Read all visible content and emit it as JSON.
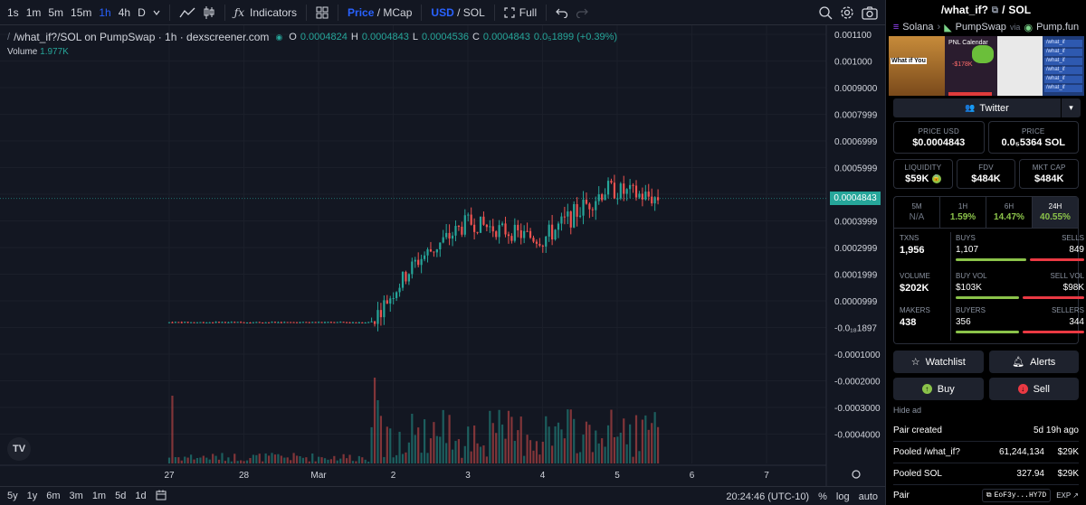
{
  "toolbar": {
    "intervals": [
      "1s",
      "1m",
      "5m",
      "15m",
      "1h",
      "4h",
      "D"
    ],
    "active_interval": "1h",
    "indicators_label": "Indicators",
    "price_label": "Price",
    "mcap_label": "MCap",
    "usd_label": "USD",
    "sol_label": "SOL",
    "full_label": "Full"
  },
  "legend": {
    "symbol": "/what_if?/SOL on PumpSwap · 1h · dexscreener.com",
    "o_label": "O",
    "o_value": "0.0004824",
    "h_label": "H",
    "h_value": "0.0004843",
    "l_label": "L",
    "l_value": "0.0004536",
    "c_label": "C",
    "c_value": "0.0004843",
    "change": "0.0₅1899 (+0.39%)",
    "volume_label": "Volume",
    "volume_value": "1.977K",
    "logo": "TV"
  },
  "price_tag": "0.0004843",
  "chart_data": {
    "type": "candlestick",
    "y_axis_labels": [
      "0.001100",
      "0.001000",
      "0.0009000",
      "0.0007999",
      "0.0006999",
      "0.0005999",
      "0.0004999",
      "0.0003999",
      "0.0002999",
      "0.0001999",
      "0.0000999",
      "-0.0₁₈1897",
      "-0.0001000",
      "-0.0002000",
      "-0.0003000",
      "-0.0004000"
    ],
    "x_axis_labels": [
      "27",
      "28",
      "Mar",
      "2",
      "3",
      "4",
      "5",
      "6",
      "7"
    ],
    "last_price": 0.0004843,
    "ylim": [
      -0.00045,
      0.00112
    ],
    "segments": [
      {
        "from_day": 0.0,
        "to_day": 2.7,
        "open": 1.95e-05,
        "close": 1.95e-05,
        "volatility": 3.5e-06
      },
      {
        "from_day": 2.7,
        "to_day": 3.3,
        "open": 1.95e-05,
        "close": 0.000245,
        "volatility": 4e-05
      },
      {
        "from_day": 3.3,
        "to_day": 4.0,
        "open": 0.000245,
        "close": 0.000395,
        "volatility": 4.5e-05
      },
      {
        "from_day": 4.0,
        "to_day": 5.0,
        "open": 0.000395,
        "close": 0.00033,
        "volatility": 4e-05
      },
      {
        "from_day": 5.0,
        "to_day": 5.85,
        "open": 0.00033,
        "close": 0.00052,
        "volatility": 5e-05
      },
      {
        "from_day": 5.85,
        "to_day": 6.55,
        "open": 0.00052,
        "close": 0.000484,
        "volatility": 4.5e-05
      }
    ],
    "volume_note": "volume bars shown below candles, max spike near Mar 2"
  },
  "bottom_bar": {
    "ranges": [
      "5y",
      "1y",
      "6m",
      "3m",
      "1m",
      "5d",
      "1d"
    ],
    "time": "20:24:46 (UTC-10)",
    "pct": "%",
    "log": "log",
    "auto": "auto"
  },
  "panel": {
    "title": "/what_if?",
    "quote": "SOL",
    "chain": "Solana",
    "dex": "PumpSwap",
    "via": "via",
    "launchpad": "Pump.fun",
    "banner": {
      "what_if_you": "What if You",
      "pnl_calendar": "PNL Calendar",
      "loss": "-$178K",
      "rows": [
        "/what_if",
        "/what_if",
        "/what_if",
        "/what_if",
        "/what_if",
        "/what_if"
      ]
    },
    "twitter": "Twitter",
    "price_usd_label": "PRICE USD",
    "price_usd": "$0.0004843",
    "price_label": "PRICE",
    "price_sol": "0.0₅5364 SOL",
    "liquidity_label": "LIQUIDITY",
    "liquidity": "$59K",
    "fdv_label": "FDV",
    "fdv": "$484K",
    "mktcap_label": "MKT CAP",
    "mktcap": "$484K",
    "timeframes": [
      {
        "label": "5M",
        "value": "N/A"
      },
      {
        "label": "1H",
        "value": "1.59%"
      },
      {
        "label": "6H",
        "value": "14.47%"
      },
      {
        "label": "24H",
        "value": "40.55%"
      }
    ],
    "txns_label": "TXNS",
    "txns": "1,956",
    "buys_label": "BUYS",
    "buys": "1,107",
    "sells_label": "SELLS",
    "sells": "849",
    "buys_ratio": 0.566,
    "volume_label": "VOLUME",
    "volume": "$202K",
    "buy_vol_label": "BUY VOL",
    "buy_vol": "$103K",
    "sell_vol_label": "SELL VOL",
    "sell_vol": "$98K",
    "buy_vol_ratio": 0.51,
    "makers_label": "MAKERS",
    "makers": "438",
    "buyers_label": "BUYERS",
    "buyers": "356",
    "sellers_label": "SELLERS",
    "sellers": "344",
    "buyers_ratio": 0.508,
    "watchlist": "Watchlist",
    "alerts": "Alerts",
    "buy": "Buy",
    "sell": "Sell",
    "hide_ad": "Hide ad",
    "pair_created_label": "Pair created",
    "pair_created": "5d 19h ago",
    "pooled_token_label": "Pooled /what_if?",
    "pooled_token": "61,244,134",
    "pooled_token_usd": "$29K",
    "pooled_sol_label": "Pooled SOL",
    "pooled_sol": "327.94",
    "pooled_sol_usd": "$29K",
    "pair_label": "Pair",
    "pair_addr": "EoF3y...HY7D",
    "exp": "EXP"
  },
  "colors": {
    "up": "#26a69a",
    "down": "#ef5350",
    "accent": "#2962ff",
    "green_text": "#8bc34a",
    "red_bar": "#ea3943"
  }
}
